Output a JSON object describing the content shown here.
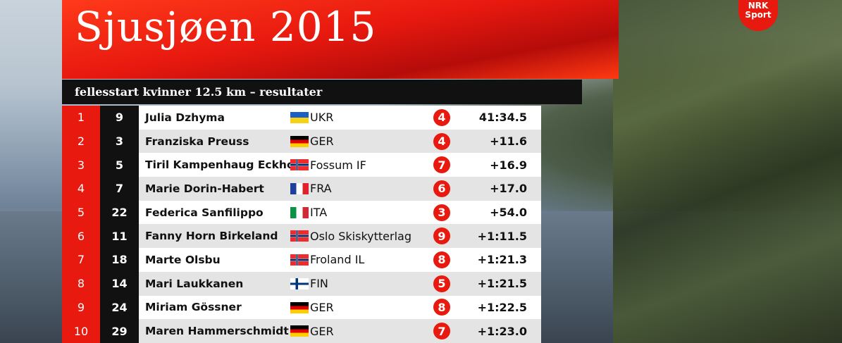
{
  "header": {
    "title": "Sjusjøen 2015",
    "subtitle": "fellesstart kvinner 12.5 km – resultater"
  },
  "logo": {
    "line1": "NRK",
    "line2": "Sport"
  },
  "table": {
    "rows": [
      [
        1,
        9,
        "Julia Dzhyma",
        "UKR",
        4,
        "41:34.5"
      ],
      [
        2,
        3,
        "Franziska Preuss",
        "GER",
        4,
        "+11.6"
      ],
      [
        3,
        5,
        "Tiril Kampenhaug Eckhoff",
        "Fossum IF",
        7,
        "+16.9"
      ],
      [
        4,
        7,
        "Marie Dorin-Habert",
        "FRA",
        6,
        "+17.0"
      ],
      [
        5,
        22,
        "Federica Sanfilippo",
        "ITA",
        3,
        "+54.0"
      ],
      [
        6,
        11,
        "Fanny Horn Birkeland",
        "Oslo Skiskytterlag",
        9,
        "+1:11.5"
      ],
      [
        7,
        18,
        "Marte Olsbu",
        "Froland IL",
        8,
        "+1:21.3"
      ],
      [
        8,
        14,
        "Mari Laukkanen",
        "FIN",
        5,
        "+1:21.5"
      ],
      [
        9,
        24,
        "Miriam Gössner",
        "GER",
        8,
        "+1:22.5"
      ],
      [
        10,
        29,
        "Maren Hammerschmidt",
        "GER",
        7,
        "+1:23.0"
      ]
    ]
  }
}
